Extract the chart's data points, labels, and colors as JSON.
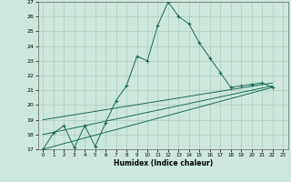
{
  "xlabel": "Humidex (Indice chaleur)",
  "bg_color": "#cce8dc",
  "grid_color": "#aaccbb",
  "line_color": "#1a6b5a",
  "xlim": [
    -0.5,
    23.5
  ],
  "ylim": [
    17,
    27
  ],
  "xticks": [
    0,
    1,
    2,
    3,
    4,
    5,
    6,
    7,
    8,
    9,
    10,
    11,
    12,
    13,
    14,
    15,
    16,
    17,
    18,
    19,
    20,
    21,
    22,
    23
  ],
  "yticks": [
    17,
    18,
    19,
    20,
    21,
    22,
    23,
    24,
    25,
    26,
    27
  ],
  "series1_x": [
    0,
    1,
    2,
    3,
    4,
    5,
    6,
    7,
    8,
    9,
    10,
    11,
    12,
    13,
    14,
    15,
    16,
    17,
    18,
    19,
    20,
    21,
    22
  ],
  "series1_y": [
    17.0,
    18.1,
    18.6,
    17.1,
    18.6,
    17.2,
    18.8,
    20.3,
    21.3,
    23.3,
    23.0,
    25.4,
    27.0,
    26.0,
    25.5,
    24.2,
    23.2,
    22.2,
    21.2,
    21.3,
    21.4,
    21.5,
    21.2
  ],
  "series2_x": [
    0,
    22
  ],
  "series2_y": [
    19.0,
    21.5
  ],
  "series3_x": [
    0,
    22
  ],
  "series3_y": [
    18.0,
    21.3
  ],
  "series4_x": [
    0,
    22
  ],
  "series4_y": [
    17.0,
    21.2
  ]
}
